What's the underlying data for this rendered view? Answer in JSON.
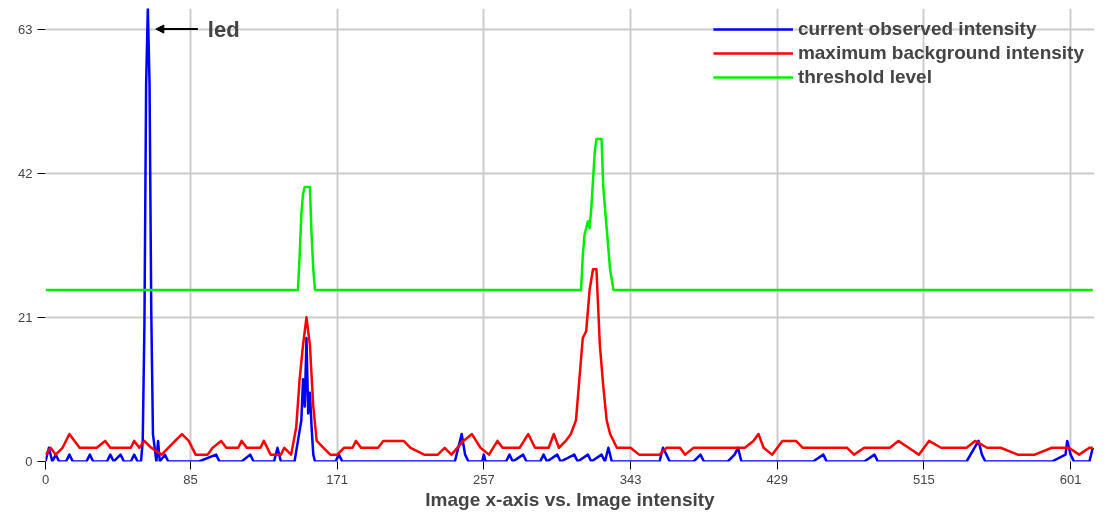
{
  "chart_data": {
    "type": "line",
    "xlabel": "Image x-axis vs. Image intensity",
    "xlim": [
      0,
      615
    ],
    "ylim": [
      0,
      66
    ],
    "xticks": [
      0,
      85,
      171,
      257,
      343,
      429,
      515,
      601
    ],
    "yticks": [
      0,
      21,
      42,
      63
    ],
    "grid": true,
    "legend": "top right",
    "marker": "none",
    "line_style": "solid",
    "annotations": [
      {
        "text": "led",
        "x": 60,
        "y": 63
      }
    ],
    "series": [
      {
        "name": "current observed intensity",
        "color": "#0000ff",
        "x": [
          0,
          2,
          4,
          6,
          8,
          12,
          14,
          16,
          24,
          26,
          28,
          36,
          38,
          40,
          44,
          46,
          50,
          52,
          54,
          56,
          57,
          58,
          59,
          60,
          61,
          62,
          63,
          64,
          65,
          66,
          67,
          70,
          72,
          80,
          90,
          100,
          102,
          115,
          120,
          122,
          134,
          136,
          138,
          146,
          148,
          150,
          151,
          152,
          153,
          154,
          155,
          156,
          157,
          158,
          170,
          172,
          174,
          200,
          230,
          240,
          242,
          244,
          246,
          248,
          256,
          257,
          258,
          270,
          272,
          274,
          280,
          282,
          290,
          292,
          294,
          300,
          302,
          310,
          312,
          318,
          320,
          326,
          328,
          330,
          332,
          360,
          362,
          364,
          366,
          380,
          384,
          386,
          400,
          404,
          406,
          408,
          420,
          440,
          450,
          456,
          458,
          480,
          486,
          488,
          500,
          530,
          540,
          547,
          549,
          551,
          580,
          590,
          598,
          599,
          601,
          603,
          612,
          614
        ],
        "values": [
          0,
          2,
          0,
          1,
          0,
          0,
          1,
          0,
          0,
          1,
          0,
          0,
          1,
          0,
          1,
          0,
          0,
          1,
          0,
          0,
          3,
          20,
          55,
          66,
          55,
          22,
          4,
          2,
          0,
          3,
          0,
          1,
          0,
          0,
          0,
          1,
          0,
          0,
          1,
          0,
          0,
          2,
          0,
          0,
          3,
          6,
          12,
          8,
          18,
          7,
          10,
          5,
          1,
          0,
          0,
          1,
          0,
          0,
          0,
          0,
          2,
          4,
          1,
          0,
          0,
          1,
          0,
          0,
          1,
          0,
          1,
          0,
          0,
          1,
          0,
          1,
          0,
          1,
          0,
          1,
          0,
          1,
          0,
          2,
          0,
          0,
          2,
          1,
          0,
          0,
          1,
          0,
          0,
          1,
          2,
          0,
          0,
          0,
          0,
          1,
          0,
          0,
          1,
          0,
          0,
          0,
          0,
          3,
          1,
          0,
          0,
          0,
          1,
          3,
          1,
          0,
          0,
          2
        ]
      },
      {
        "name": "maximum background intensity",
        "color": "#ff0000",
        "x": [
          0,
          3,
          6,
          10,
          14,
          17,
          20,
          30,
          35,
          38,
          50,
          52,
          55,
          58,
          62,
          68,
          72,
          76,
          80,
          84,
          88,
          95,
          98,
          103,
          106,
          113,
          115,
          118,
          126,
          128,
          132,
          138,
          140,
          144,
          147,
          149,
          151,
          153,
          155,
          157,
          159,
          163,
          167,
          171,
          175,
          180,
          182,
          185,
          195,
          198,
          210,
          214,
          222,
          230,
          234,
          238,
          245,
          250,
          255,
          260,
          265,
          268,
          278,
          283,
          287,
          295,
          298,
          301,
          305,
          308,
          311,
          313,
          315,
          317,
          319,
          321,
          323,
          325,
          327,
          329,
          331,
          335,
          343,
          348,
          360,
          364,
          372,
          375,
          380,
          400,
          410,
          415,
          418,
          421,
          426,
          432,
          440,
          444,
          470,
          474,
          480,
          495,
          500,
          506,
          512,
          518,
          525,
          540,
          545,
          552,
          560,
          570,
          580,
          590,
          600,
          606,
          612,
          614
        ],
        "values": [
          1,
          2,
          1,
          2,
          4,
          3,
          2,
          2,
          3,
          2,
          2,
          3,
          2,
          3,
          2,
          1,
          2,
          3,
          4,
          3,
          1,
          1,
          2,
          3,
          2,
          2,
          3,
          2,
          2,
          3,
          1,
          1,
          2,
          1,
          5,
          12,
          17,
          21,
          17,
          8,
          3,
          2,
          1,
          1,
          2,
          2,
          3,
          2,
          2,
          3,
          3,
          2,
          1,
          1,
          2,
          1,
          3,
          4,
          2,
          1,
          3,
          2,
          2,
          4,
          2,
          2,
          4,
          2,
          3,
          4,
          6,
          12,
          18,
          19,
          25,
          28,
          28,
          17,
          11,
          6,
          4,
          2,
          2,
          1,
          1,
          2,
          2,
          1,
          2,
          2,
          2,
          3,
          4,
          2,
          1,
          3,
          3,
          2,
          2,
          1,
          2,
          2,
          3,
          2,
          1,
          3,
          2,
          2,
          3,
          2,
          2,
          1,
          1,
          2,
          2,
          1,
          2,
          2
        ]
      },
      {
        "name": "threshold level",
        "color": "#00ee00",
        "x": [
          0,
          148,
          149,
          150,
          151,
          152,
          155,
          156,
          157,
          158,
          314,
          315,
          316,
          318,
          319,
          320,
          321,
          322,
          323,
          326,
          327,
          329,
          331,
          333,
          614
        ],
        "values": [
          25,
          25,
          30,
          36,
          39,
          40,
          40,
          33,
          28,
          25,
          25,
          30,
          33,
          35,
          34,
          37,
          41,
          45,
          47,
          47,
          40,
          34,
          28,
          25,
          25
        ]
      }
    ]
  }
}
